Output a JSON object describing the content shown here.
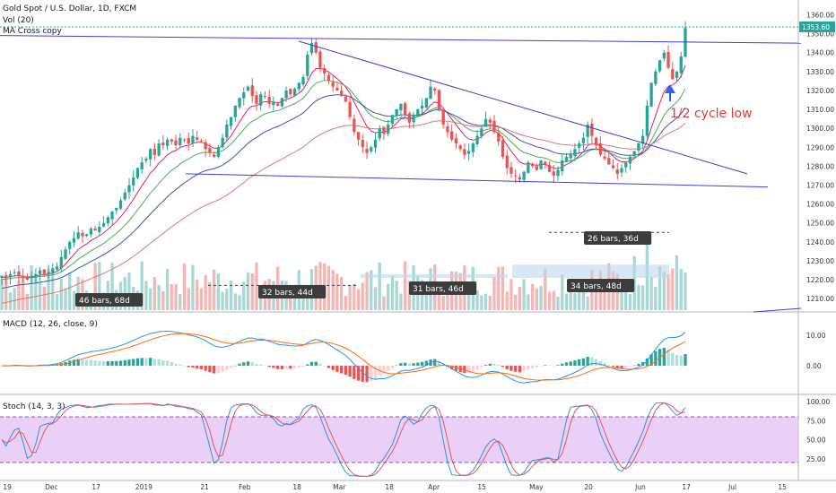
{
  "header": {
    "symbol_line": "Gold Spot / U.S. Dollar, 1D, FXCM",
    "volume_label": "Vol (20)",
    "ma_label": "MA Cross copy"
  },
  "panes": {
    "macd_label": "MACD (12, 26, close, 9)",
    "stoch_label": "Stoch (14, 3, 3)"
  },
  "annotations": {
    "cycle_low": "1/2 cycle low",
    "range_1": "46 bars, 68d",
    "range_2": "32 bars, 44d",
    "range_3": "31 bars, 46d",
    "range_4": "34 bars, 48d",
    "range_5": "26 bars, 36d"
  },
  "colors": {
    "up": "#26a69a",
    "down": "#ef5350",
    "trendline": "#3f3fd6",
    "arrow": "#2962ff",
    "annotation_text": "#e53935",
    "stoch_band": "#e6c8f5"
  },
  "chart_data": {
    "type": "candlestick",
    "title": "Gold Spot / U.S. Dollar, 1D, FXCM",
    "x_labels": [
      "19",
      "Dec",
      "17",
      "2019",
      "21",
      "Feb",
      "18",
      "Mar",
      "18",
      "Apr",
      "15",
      "May",
      "20",
      "Jun",
      "17",
      "Jul",
      "15"
    ],
    "price_ticks": [
      1210,
      1220,
      1230,
      1240,
      1250,
      1260,
      1270,
      1280,
      1290,
      1300,
      1310,
      1320,
      1330,
      1340,
      1350,
      1360
    ],
    "price_ylim": [
      1203,
      1364
    ],
    "last_price": "1353.60",
    "closes": [
      1222,
      1221,
      1223,
      1224,
      1222,
      1221,
      1220,
      1222,
      1223,
      1225,
      1223,
      1224,
      1226,
      1227,
      1232,
      1236,
      1240,
      1242,
      1245,
      1243,
      1244,
      1247,
      1246,
      1248,
      1250,
      1253,
      1256,
      1258,
      1262,
      1266,
      1270,
      1274,
      1279,
      1282,
      1284,
      1289,
      1286,
      1292,
      1291,
      1294,
      1293,
      1291,
      1295,
      1294,
      1292,
      1296,
      1294,
      1293,
      1289,
      1287,
      1285,
      1290,
      1295,
      1302,
      1306,
      1312,
      1316,
      1319,
      1322,
      1317,
      1313,
      1318,
      1317,
      1313,
      1314,
      1312,
      1316,
      1320,
      1318,
      1321,
      1324,
      1327,
      1339,
      1345,
      1340,
      1332,
      1329,
      1325,
      1322,
      1320,
      1317,
      1314,
      1306,
      1298,
      1294,
      1290,
      1287,
      1290,
      1294,
      1300,
      1297,
      1302,
      1307,
      1310,
      1313,
      1307,
      1303,
      1307,
      1310,
      1312,
      1316,
      1322,
      1320,
      1310,
      1302,
      1298,
      1294,
      1292,
      1289,
      1286,
      1288,
      1292,
      1296,
      1300,
      1305,
      1303,
      1298,
      1293,
      1285,
      1279,
      1276,
      1275,
      1273,
      1277,
      1282,
      1280,
      1278,
      1283,
      1281,
      1277,
      1275,
      1278,
      1283,
      1285,
      1286,
      1289,
      1292,
      1295,
      1302,
      1296,
      1291,
      1286,
      1284,
      1281,
      1279,
      1276,
      1279,
      1282,
      1285,
      1288,
      1292,
      1296,
      1312,
      1324,
      1330,
      1336,
      1340,
      1332,
      1326,
      1330,
      1338,
      1353
    ],
    "ma_fast_start": 1221,
    "ma_mid_start": 1220,
    "ma_slow_start": 1215,
    "macd_ticks": [
      0.0,
      10.0
    ],
    "stoch_ticks": [
      25.0,
      50.0,
      75.0,
      100.0
    ],
    "stoch_band": [
      20,
      80
    ]
  }
}
